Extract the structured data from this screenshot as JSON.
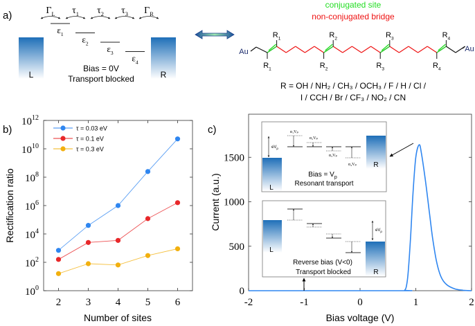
{
  "panel_a": {
    "label": "a)",
    "couplings": [
      {
        "sym": "Γ",
        "sub": "L"
      },
      {
        "sym": "τ",
        "sub": "1"
      },
      {
        "sym": "τ",
        "sub": "2"
      },
      {
        "sym": "τ",
        "sub": "3"
      },
      {
        "sym": "Γ",
        "sub": "R"
      }
    ],
    "levels": [
      {
        "sym": "ε",
        "sub": "1"
      },
      {
        "sym": "ε",
        "sub": "2"
      },
      {
        "sym": "ε",
        "sub": "3"
      },
      {
        "sym": "ε",
        "sub": "4"
      }
    ],
    "left_electrode": "L",
    "right_electrode": "R",
    "bias_text": "Bias = 0V",
    "status_text": "Transport blocked",
    "legend_conjugated": "conjugated site",
    "legend_bridge": "non-conjugated bridge",
    "anchor_left": "Au",
    "anchor_right": "Au",
    "substituents": [
      {
        "sym": "R",
        "sub": "1"
      },
      {
        "sym": "R",
        "sub": "2"
      },
      {
        "sym": "R",
        "sub": "3"
      },
      {
        "sym": "R",
        "sub": "4"
      }
    ],
    "r_groups_line1": "R = OH / NH₂ / CH₃ / OCH₃ / F / H / Cl /",
    "r_groups_line2": "I / CCH / Br / CF₃ / NO₂ / CN",
    "colors": {
      "conjugated": "#22dd22",
      "bridge": "#ee1111",
      "electrode": "#1e6fb8"
    }
  },
  "chart_data": [
    {
      "panel_label": "b)",
      "type": "line",
      "xlabel": "Number of sites",
      "ylabel": "Rectification ratio",
      "x": [
        2,
        3,
        4,
        5,
        6
      ],
      "xticks": [
        "2",
        "3",
        "4",
        "5",
        "6"
      ],
      "xlim": [
        1.5,
        6.5
      ],
      "yscale": "log",
      "ylim": [
        1,
        1000000000000.0
      ],
      "yticks": [
        {
          "base": "10",
          "exp": "0"
        },
        {
          "base": "10",
          "exp": "2"
        },
        {
          "base": "10",
          "exp": "4"
        },
        {
          "base": "10",
          "exp": "6"
        },
        {
          "base": "10",
          "exp": "8"
        },
        {
          "base": "10",
          "exp": "10"
        },
        {
          "base": "10",
          "exp": "12"
        }
      ],
      "legend_position": "top-left",
      "series": [
        {
          "name": "τ = 0.03 eV",
          "color": "#2f86f0",
          "values": [
            700,
            40000,
            1000000,
            250000000,
            50000000000
          ]
        },
        {
          "name": "τ = 0.1 eV",
          "color": "#e8282a",
          "values": [
            160,
            2500,
            3500,
            120000,
            1600000
          ]
        },
        {
          "name": "τ = 0.3 eV",
          "color": "#f2b00f",
          "values": [
            16,
            80,
            65,
            300,
            900
          ]
        }
      ]
    },
    {
      "panel_label": "c)",
      "type": "line",
      "xlabel": "Bias voltage (V)",
      "ylabel": "Current (a.u.)",
      "xlim": [
        -2,
        2
      ],
      "ylim": [
        0,
        2000
      ],
      "xticks": [
        "-2",
        "-1",
        "0",
        "1",
        "2"
      ],
      "yticks": [
        "0",
        "500",
        "1000",
        "1500"
      ],
      "series": [
        {
          "color": "#2f86f0",
          "x": [
            -2,
            0.7,
            0.8,
            0.84,
            0.87,
            0.91,
            0.95,
            1.0,
            1.06,
            1.1,
            1.17,
            1.24,
            1.3,
            1.37,
            1.45,
            1.55,
            1.7,
            1.85,
            2.0
          ],
          "y": [
            0,
            0,
            5,
            80,
            256,
            645,
            1100,
            1500,
            1640,
            1550,
            1250,
            900,
            600,
            334,
            160,
            70,
            20,
            5,
            0
          ]
        }
      ],
      "inset_resonant": {
        "left_electrode": "L",
        "right_electrode": "R",
        "ev_label": "eV",
        "ev_sub": "p",
        "alpha_labels": [
          "α₁Vₚ",
          "α₂Vₚ",
          "α₃Vₚ",
          "α₄Vₚ"
        ],
        "bias_text": "Bias = V",
        "bias_sub": "p",
        "status_text": "Resonant transport"
      },
      "inset_reverse": {
        "left_electrode": "L",
        "right_electrode": "R",
        "ev_label": "eV",
        "ev_sub": "p",
        "bias_text": "Reverse bias (V<0)",
        "status_text": "Transport blocked"
      }
    }
  ]
}
